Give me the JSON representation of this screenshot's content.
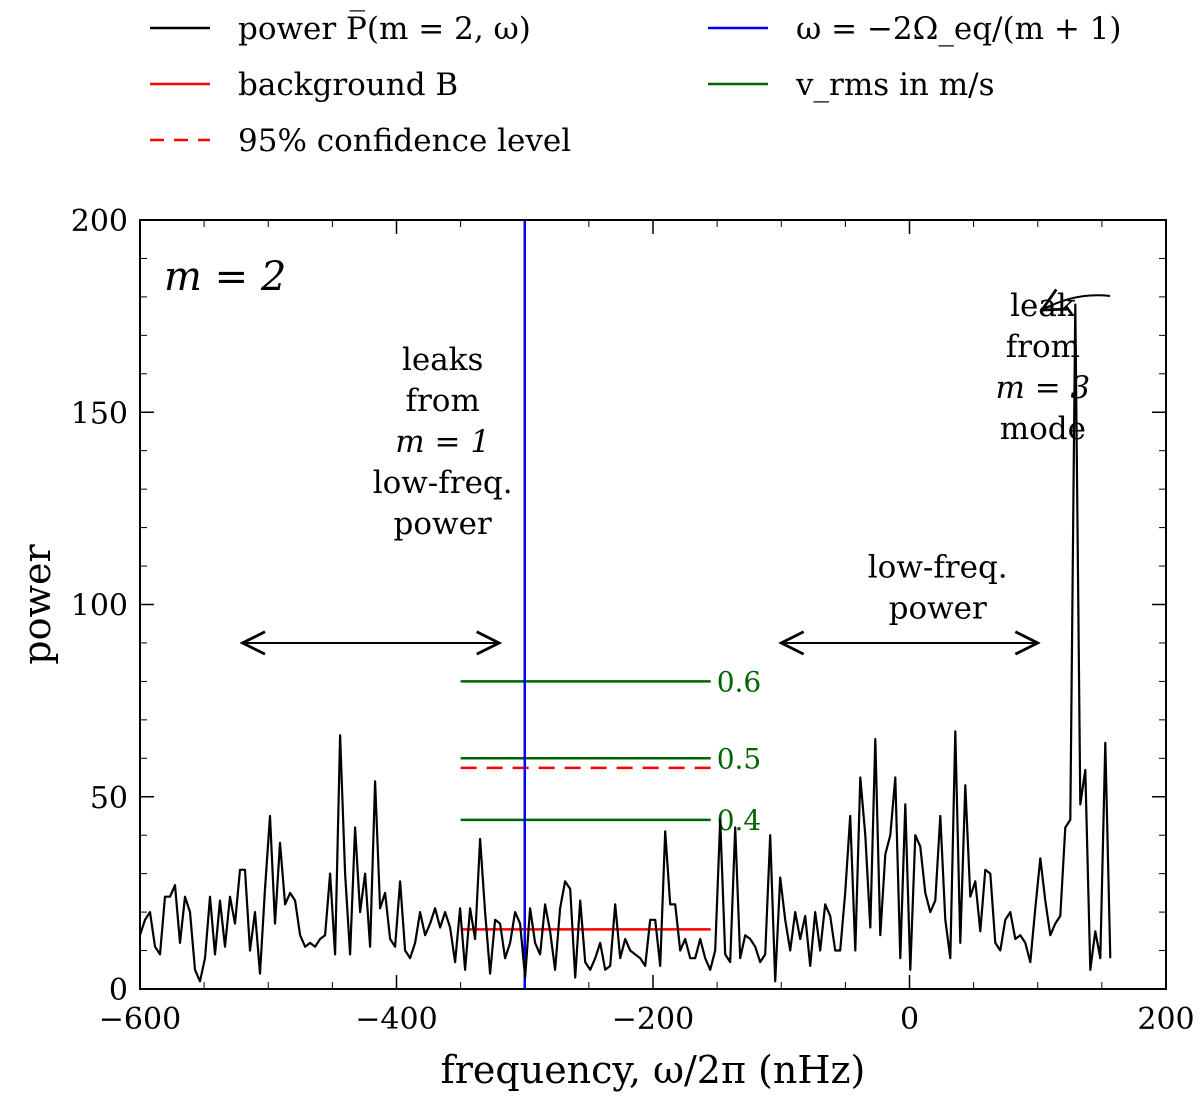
{
  "chart_data": {
    "type": "line",
    "xlabel": "frequency, ω/2π (nHz)",
    "ylabel": "power",
    "xlim": [
      -600,
      200
    ],
    "ylim": [
      0,
      200
    ],
    "x_ticks": [
      -600,
      -400,
      -200,
      0,
      200
    ],
    "x_tick_labels": [
      "−600",
      "−400",
      "−200",
      "0",
      "200"
    ],
    "y_ticks": [
      0,
      50,
      100,
      150,
      200
    ],
    "y_tick_labels": [
      "0",
      "50",
      "100",
      "150",
      "200"
    ],
    "panel_label": "m = 2",
    "colors": {
      "power": "#000000",
      "background": "#ff0000",
      "confidence": "#ff0000",
      "vline": "#0000ff",
      "vrms": "#006400"
    },
    "legend": [
      {
        "label": "power P̅(m = 2, ω)",
        "style": "solid",
        "color": "#000000"
      },
      {
        "label": "background B",
        "style": "solid",
        "color": "#ff0000"
      },
      {
        "label": "95% confidence level",
        "style": "dashed",
        "color": "#ff0000"
      },
      {
        "label": "ω = −2Ω_eq/(m + 1)",
        "style": "solid",
        "color": "#0000ff"
      },
      {
        "label": "v_rms in m/s",
        "style": "solid",
        "color": "#006400"
      }
    ],
    "series": [
      {
        "name": "power",
        "x_start": -600,
        "x_step": 3.9,
        "values": [
          14,
          18,
          20,
          11,
          9,
          24,
          24,
          27,
          12,
          24,
          20,
          5,
          2,
          8,
          24,
          9,
          23,
          11,
          24,
          17,
          31,
          31,
          10,
          20,
          4,
          26,
          45,
          17,
          38,
          22,
          25,
          23,
          14,
          11,
          12,
          11,
          13,
          14,
          30,
          9,
          66,
          30,
          9,
          42,
          20,
          30,
          11,
          54,
          21,
          25,
          13,
          11,
          28,
          10,
          8,
          12,
          20,
          14,
          17,
          21,
          16,
          20,
          16,
          7,
          21,
          5,
          21,
          13,
          39,
          20,
          4,
          18,
          17,
          8,
          12,
          20,
          17,
          3,
          21,
          12,
          9,
          22,
          15,
          5,
          21,
          28,
          26,
          3,
          23,
          7,
          5,
          8,
          12,
          5,
          6,
          22,
          8,
          13,
          10,
          9,
          8,
          6,
          18,
          18,
          6,
          41,
          22,
          22,
          10,
          13,
          8,
          8,
          13,
          8,
          5,
          10,
          44,
          9,
          7,
          42,
          8,
          14,
          13,
          11,
          7,
          9,
          40,
          2,
          29,
          18,
          10,
          20,
          13,
          19,
          6,
          20,
          10,
          22,
          19,
          10,
          10,
          25,
          45,
          10,
          55,
          40,
          16,
          65,
          14,
          35,
          40,
          55,
          8,
          48,
          5,
          40,
          37,
          25,
          20,
          23,
          45,
          18,
          8,
          67,
          12,
          53,
          24,
          28,
          15,
          31,
          30,
          12,
          10,
          18,
          20,
          13,
          14,
          12,
          7,
          21,
          34,
          23,
          14,
          17,
          19,
          42,
          44,
          178,
          48,
          57,
          5,
          15,
          8,
          64,
          8
        ]
      }
    ],
    "vertical_line": {
      "x": -300,
      "label": "ω = −2Ω_eq/(m + 1)"
    },
    "background_level": {
      "value": 15.5,
      "x_range": [
        -350,
        -155
      ]
    },
    "confidence_level": {
      "value": 57.5,
      "x_range": [
        -350,
        -155
      ]
    },
    "vrms_levels": [
      {
        "value": 80,
        "label": "0.6"
      },
      {
        "value": 60,
        "label": "0.5"
      },
      {
        "value": 44,
        "label": "0.4"
      }
    ],
    "vrms_x_range": [
      -350,
      -155
    ],
    "annotations": [
      {
        "lines": [
          "leaks",
          "from",
          "m = 1",
          "low-freq.",
          "power"
        ],
        "x": -364,
        "y": 161
      },
      {
        "lines": [
          "low-freq.",
          "power"
        ],
        "x": 22,
        "y": 107
      },
      {
        "lines": [
          "leak",
          "from",
          "m = 3",
          "mode"
        ],
        "x": 104,
        "y": 175
      }
    ],
    "arrows": [
      {
        "x_from": -520,
        "x_to": -320,
        "y": 90,
        "style": "double"
      },
      {
        "x_from": -100,
        "x_to": 100,
        "y": 90,
        "style": "double"
      }
    ]
  }
}
